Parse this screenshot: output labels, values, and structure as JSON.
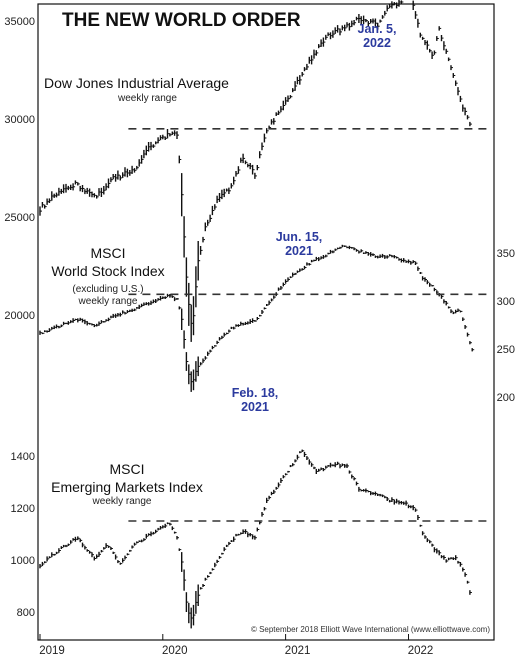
{
  "title": "THE NEW WORLD ORDER",
  "copyright": "© September 2018 Elliott Wave International (www.elliottwave.com)",
  "x_axis": {
    "tick_labels": [
      "2019",
      "2020",
      "2021",
      "2022"
    ],
    "range": [
      2019.0,
      2022.55
    ]
  },
  "chart_data": [
    {
      "type": "bar",
      "name": "Dow Jones Industrial Average",
      "label_lines": [
        "Dow Jones Industrial Average"
      ],
      "sublabel": "weekly range",
      "axis_side": "left",
      "yticks": [
        20000,
        25000,
        30000,
        35000
      ],
      "ytick_labels": [
        "20000",
        "25000",
        "30000",
        "35000"
      ],
      "peak": {
        "date": "Jan. 5,",
        "year": "2022",
        "x": 2022.01,
        "value": 36800
      },
      "reference_level": 29500,
      "anchors": [
        [
          2019.0,
          25400
        ],
        [
          2019.1,
          26000
        ],
        [
          2019.3,
          26700
        ],
        [
          2019.45,
          26000
        ],
        [
          2019.6,
          27000
        ],
        [
          2019.75,
          27300
        ],
        [
          2019.9,
          28600
        ],
        [
          2020.05,
          29200
        ],
        [
          2020.12,
          29300
        ],
        [
          2020.16,
          25500
        ],
        [
          2020.2,
          21000
        ],
        [
          2020.24,
          19000
        ],
        [
          2020.28,
          22500
        ],
        [
          2020.35,
          24500
        ],
        [
          2020.45,
          26000
        ],
        [
          2020.55,
          26500
        ],
        [
          2020.65,
          28000
        ],
        [
          2020.75,
          27200
        ],
        [
          2020.85,
          29500
        ],
        [
          2021.0,
          30800
        ],
        [
          2021.2,
          33000
        ],
        [
          2021.35,
          34300
        ],
        [
          2021.5,
          34700
        ],
        [
          2021.6,
          35100
        ],
        [
          2021.75,
          34800
        ],
        [
          2021.85,
          35800
        ],
        [
          2021.95,
          36000
        ],
        [
          2022.01,
          36600
        ],
        [
          2022.1,
          34300
        ],
        [
          2022.2,
          33200
        ],
        [
          2022.25,
          34500
        ],
        [
          2022.3,
          33500
        ],
        [
          2022.38,
          31800
        ],
        [
          2022.45,
          30500
        ],
        [
          2022.5,
          29800
        ]
      ]
    },
    {
      "type": "bar",
      "name": "MSCI World Stock Index",
      "label_lines": [
        "MSCI",
        "World Stock Index"
      ],
      "sublabel_lines": [
        "(excluding U.S.)",
        "weekly range"
      ],
      "axis_side": "right",
      "yticks": [
        200,
        250,
        300,
        350
      ],
      "ytick_labels": [
        "200",
        "250",
        "300",
        "350"
      ],
      "peak": {
        "date": "Jun. 15,",
        "year": "2021",
        "x": 2021.46,
        "value": 360
      },
      "reference_level": 307,
      "anchors": [
        [
          2019.0,
          266
        ],
        [
          2019.1,
          271
        ],
        [
          2019.3,
          281
        ],
        [
          2019.45,
          274
        ],
        [
          2019.6,
          284
        ],
        [
          2019.75,
          291
        ],
        [
          2019.9,
          298
        ],
        [
          2020.05,
          306
        ],
        [
          2020.12,
          301
        ],
        [
          2020.16,
          276
        ],
        [
          2020.2,
          228
        ],
        [
          2020.24,
          212
        ],
        [
          2020.28,
          231
        ],
        [
          2020.35,
          242
        ],
        [
          2020.45,
          258
        ],
        [
          2020.55,
          271
        ],
        [
          2020.65,
          277
        ],
        [
          2020.75,
          279
        ],
        [
          2020.85,
          296
        ],
        [
          2021.0,
          321
        ],
        [
          2021.2,
          340
        ],
        [
          2021.35,
          349
        ],
        [
          2021.46,
          358
        ],
        [
          2021.6,
          352
        ],
        [
          2021.75,
          346
        ],
        [
          2021.85,
          347
        ],
        [
          2021.95,
          342
        ],
        [
          2022.05,
          340
        ],
        [
          2022.12,
          323
        ],
        [
          2022.2,
          315
        ],
        [
          2022.28,
          302
        ],
        [
          2022.35,
          288
        ],
        [
          2022.42,
          291
        ],
        [
          2022.48,
          266
        ],
        [
          2022.52,
          249
        ]
      ]
    },
    {
      "type": "bar",
      "name": "MSCI Emerging Markets Index",
      "label_lines": [
        "MSCI",
        "Emerging Markets Index"
      ],
      "sublabel": "weekly range",
      "axis_side": "left",
      "yticks": [
        800,
        1000,
        1200,
        1400
      ],
      "ytick_labels": [
        "800",
        "1000",
        "1200",
        "1400"
      ],
      "peak": {
        "date": "Feb. 18,",
        "year": "2021",
        "x": 2021.13,
        "value": 1440
      },
      "reference_level": 1150,
      "anchors": [
        [
          2019.0,
          975
        ],
        [
          2019.1,
          1020
        ],
        [
          2019.3,
          1085
        ],
        [
          2019.45,
          1005
        ],
        [
          2019.55,
          1060
        ],
        [
          2019.65,
          985
        ],
        [
          2019.75,
          1050
        ],
        [
          2019.9,
          1100
        ],
        [
          2020.05,
          1145
        ],
        [
          2020.12,
          1080
        ],
        [
          2020.16,
          980
        ],
        [
          2020.2,
          810
        ],
        [
          2020.24,
          770
        ],
        [
          2020.28,
          860
        ],
        [
          2020.35,
          930
        ],
        [
          2020.45,
          1000
        ],
        [
          2020.55,
          1075
        ],
        [
          2020.65,
          1110
        ],
        [
          2020.75,
          1090
        ],
        [
          2020.85,
          1230
        ],
        [
          2021.0,
          1330
        ],
        [
          2021.13,
          1420
        ],
        [
          2021.25,
          1340
        ],
        [
          2021.4,
          1370
        ],
        [
          2021.5,
          1360
        ],
        [
          2021.6,
          1270
        ],
        [
          2021.75,
          1250
        ],
        [
          2021.85,
          1230
        ],
        [
          2021.95,
          1220
        ],
        [
          2022.05,
          1200
        ],
        [
          2022.12,
          1100
        ],
        [
          2022.2,
          1050
        ],
        [
          2022.3,
          1000
        ],
        [
          2022.38,
          1010
        ],
        [
          2022.45,
          960
        ],
        [
          2022.5,
          880
        ]
      ]
    }
  ]
}
